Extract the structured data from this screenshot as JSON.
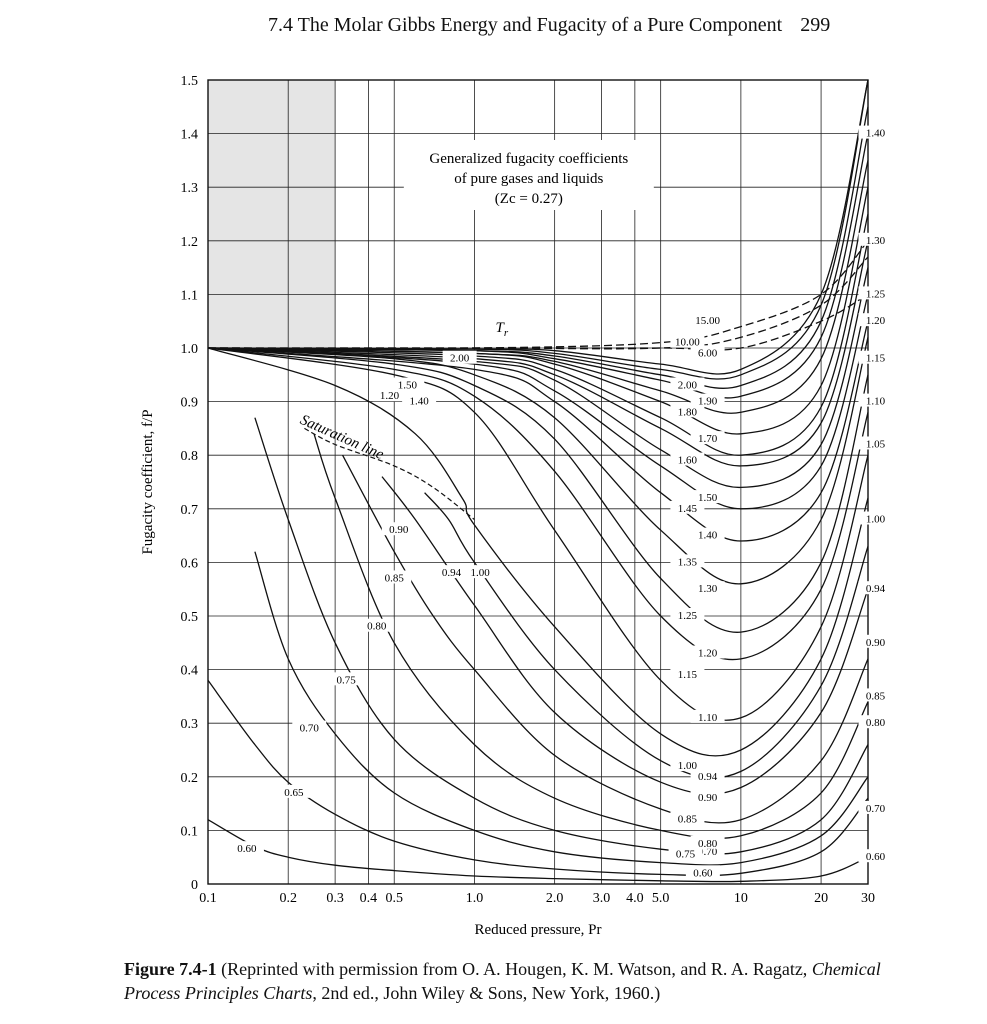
{
  "page": {
    "section_title": "7.4 The Molar Gibbs Energy and Fugacity of a Pure Component",
    "page_number": "299"
  },
  "caption": {
    "label": "Figure 7.4-1",
    "text_before": "(Reprinted with permission from O. A. Hougen, K. M. Watson, and R. A. Ragatz,",
    "book_title": "Chemical Process Principles Charts",
    "text_after": ", 2nd ed., John Wiley & Sons, New York, 1960.)"
  },
  "chart_data": {
    "type": "line",
    "title_lines": [
      "Generalized fugacity coefficients",
      "of pure gases and liquids",
      "(Zc = 0.27)"
    ],
    "xlabel": "Reduced pressure, Pr",
    "ylabel": "Fugacity coefficient, f/P",
    "x_scale": "log",
    "xlim": [
      0.1,
      30
    ],
    "ylim": [
      0,
      1.5
    ],
    "x_ticks": [
      0.1,
      0.2,
      0.3,
      0.4,
      0.5,
      1.0,
      2.0,
      3.0,
      4.0,
      5.0,
      10,
      20,
      30
    ],
    "x_tick_labels": [
      "0.1",
      "0.2",
      "0.3",
      "0.4",
      "0.5",
      "1.0",
      "2.0",
      "3.0",
      "4.0",
      "5.0",
      "10",
      "20",
      "30"
    ],
    "y_ticks": [
      0,
      0.1,
      0.2,
      0.3,
      0.4,
      0.5,
      0.6,
      0.7,
      0.8,
      0.9,
      1.0,
      1.1,
      1.2,
      1.3,
      1.4,
      1.5
    ],
    "y_tick_labels": [
      "0",
      "0.1",
      "0.2",
      "0.3",
      "0.4",
      "0.5",
      "0.6",
      "0.7",
      "0.8",
      "0.9",
      "1.0",
      "1.1",
      "1.2",
      "1.3",
      "1.4",
      "1.5"
    ],
    "grid": true,
    "parameter": "Tr",
    "parameter_label": "T",
    "parameter_subscript": "r",
    "saturation_label": "Saturation line",
    "series": [
      {
        "name": "0.60",
        "x": [
          0.1,
          0.15,
          0.2,
          0.3,
          0.5,
          1,
          2,
          5,
          10,
          20,
          30
        ],
        "y": [
          0.12,
          0.07,
          0.05,
          0.035,
          0.025,
          0.015,
          0.01,
          0.006,
          0.005,
          0.015,
          0.05
        ],
        "label_positions": [
          [
            0.14,
            0.065
          ],
          [
            7.2,
            0.02
          ],
          [
            32,
            0.05
          ]
        ]
      },
      {
        "name": "0.65",
        "x": [
          0.1,
          0.15,
          0.2,
          0.3,
          0.5,
          1,
          2,
          5,
          10,
          20,
          30
        ],
        "y": [
          0.38,
          0.26,
          0.19,
          0.13,
          0.08,
          0.045,
          0.028,
          0.018,
          0.02,
          0.06,
          0.16
        ],
        "label_positions": [
          [
            0.21,
            0.17
          ]
        ]
      },
      {
        "name": "0.70",
        "x": [
          0.15,
          0.2,
          0.3,
          0.5,
          1,
          2,
          5,
          10,
          20,
          30
        ],
        "y": [
          0.62,
          0.42,
          0.28,
          0.17,
          0.1,
          0.06,
          0.04,
          0.04,
          0.09,
          0.2
        ],
        "label_positions": [
          [
            0.24,
            0.29
          ],
          [
            7.5,
            0.06
          ],
          [
            32,
            0.14
          ]
        ]
      },
      {
        "name": "0.75",
        "x": [
          0.15,
          0.2,
          0.3,
          0.5,
          1,
          2,
          5,
          10,
          20,
          30
        ],
        "y": [
          0.87,
          0.68,
          0.45,
          0.27,
          0.16,
          0.1,
          0.065,
          0.06,
          0.12,
          0.26
        ],
        "label_positions": [
          [
            0.33,
            0.38
          ],
          [
            6.2,
            0.055
          ]
        ]
      },
      {
        "name": "0.80",
        "x": [
          0.25,
          0.3,
          0.5,
          1,
          2,
          5,
          10,
          20,
          30
        ],
        "y": [
          0.84,
          0.72,
          0.45,
          0.26,
          0.16,
          0.1,
          0.09,
          0.17,
          0.34
        ],
        "label_positions": [
          [
            0.43,
            0.48
          ],
          [
            7.5,
            0.075
          ],
          [
            32,
            0.3
          ]
        ]
      },
      {
        "name": "0.85",
        "x": [
          0.32,
          0.5,
          0.7,
          1,
          2,
          5,
          10,
          20,
          30
        ],
        "y": [
          0.8,
          0.62,
          0.5,
          0.4,
          0.24,
          0.14,
          0.12,
          0.23,
          0.42
        ],
        "label_positions": [
          [
            0.5,
            0.57
          ],
          [
            6.3,
            0.12
          ],
          [
            32,
            0.35
          ]
        ]
      },
      {
        "name": "0.90",
        "x": [
          0.45,
          0.6,
          1,
          2,
          5,
          10,
          20,
          30
        ],
        "y": [
          0.76,
          0.68,
          0.52,
          0.32,
          0.19,
          0.18,
          0.32,
          0.55
        ],
        "label_positions": [
          [
            0.52,
            0.66
          ],
          [
            7.5,
            0.16
          ],
          [
            32,
            0.45
          ]
        ]
      },
      {
        "name": "0.94",
        "x": [
          0.65,
          0.8,
          1,
          2,
          5,
          10,
          20,
          30
        ],
        "y": [
          0.73,
          0.68,
          0.6,
          0.4,
          0.23,
          0.21,
          0.37,
          0.63
        ],
        "label_positions": [
          [
            0.82,
            0.58
          ],
          [
            7.5,
            0.2
          ],
          [
            32,
            0.55
          ]
        ]
      },
      {
        "name": "1.00",
        "x": [
          0.1,
          0.3,
          0.6,
          0.9,
          1,
          2,
          5,
          10,
          20,
          30
        ],
        "y": [
          1.0,
          0.93,
          0.84,
          0.72,
          0.67,
          0.48,
          0.28,
          0.25,
          0.42,
          0.72
        ],
        "label_positions": [
          [
            1.05,
            0.58
          ],
          [
            6.3,
            0.22
          ],
          [
            32,
            0.68
          ]
        ]
      },
      {
        "name": "1.05",
        "x": [
          0.1,
          0.5,
          1,
          2,
          5,
          10,
          20,
          30
        ],
        "y": [
          1.0,
          0.95,
          0.88,
          0.66,
          0.38,
          0.31,
          0.48,
          0.8
        ],
        "label_positions": [
          [
            32,
            0.82
          ]
        ]
      },
      {
        "name": "1.10",
        "x": [
          0.1,
          0.5,
          1,
          2,
          5,
          10,
          20,
          30
        ],
        "y": [
          1.0,
          0.96,
          0.91,
          0.77,
          0.5,
          0.42,
          0.55,
          0.88
        ],
        "label_positions": [
          [
            7.5,
            0.31
          ],
          [
            32,
            0.9
          ]
        ]
      },
      {
        "name": "1.15",
        "x": [
          0.1,
          0.5,
          1,
          2,
          5,
          10,
          20,
          30
        ],
        "y": [
          1.0,
          0.97,
          0.93,
          0.83,
          0.57,
          0.47,
          0.6,
          0.95
        ],
        "label_positions": [
          [
            6.3,
            0.39
          ],
          [
            32,
            0.98
          ]
        ]
      },
      {
        "name": "1.20",
        "x": [
          0.1,
          0.5,
          1,
          2,
          5,
          10,
          20,
          30
        ],
        "y": [
          1.0,
          0.98,
          0.95,
          0.87,
          0.66,
          0.56,
          0.68,
          1.02
        ],
        "label_positions": [
          [
            0.48,
            0.91
          ],
          [
            7.5,
            0.43
          ],
          [
            32,
            1.05
          ]
        ]
      },
      {
        "name": "1.25",
        "x": [
          0.1,
          1,
          2,
          5,
          10,
          20,
          30
        ],
        "y": [
          1.0,
          0.96,
          0.9,
          0.73,
          0.64,
          0.73,
          1.05
        ],
        "label_positions": [
          [
            6.3,
            0.5
          ],
          [
            32,
            1.1
          ]
        ]
      },
      {
        "name": "1.30",
        "x": [
          0.1,
          1,
          2,
          5,
          10,
          20,
          30
        ],
        "y": [
          1.0,
          0.97,
          0.92,
          0.78,
          0.7,
          0.78,
          1.1
        ],
        "label_positions": [
          [
            7.5,
            0.55
          ],
          [
            32,
            1.2
          ]
        ]
      },
      {
        "name": "1.35",
        "x": [
          0.1,
          1,
          2,
          5,
          10,
          20,
          30
        ],
        "y": [
          1.0,
          0.975,
          0.94,
          0.81,
          0.74,
          0.82,
          1.15
        ],
        "label_positions": [
          [
            6.3,
            0.6
          ]
        ]
      },
      {
        "name": "1.40",
        "x": [
          0.1,
          1,
          2,
          5,
          10,
          20,
          30
        ],
        "y": [
          1.0,
          0.98,
          0.95,
          0.85,
          0.78,
          0.86,
          1.2
        ],
        "label_positions": [
          [
            0.62,
            0.9
          ],
          [
            7.5,
            0.65
          ],
          [
            32,
            1.4
          ]
        ]
      },
      {
        "name": "1.45",
        "x": [
          0.1,
          1,
          2,
          5,
          10,
          20,
          30
        ],
        "y": [
          1.0,
          0.985,
          0.96,
          0.87,
          0.8,
          0.89,
          1.25
        ],
        "label_positions": [
          [
            6.3,
            0.7
          ]
        ]
      },
      {
        "name": "1.50",
        "x": [
          0.1,
          1,
          2,
          5,
          10,
          20,
          30
        ],
        "y": [
          1.0,
          0.99,
          0.97,
          0.9,
          0.84,
          0.93,
          1.3
        ],
        "label_positions": [
          [
            0.56,
            0.93
          ],
          [
            7.5,
            0.72
          ]
        ]
      },
      {
        "name": "1.60",
        "x": [
          0.1,
          1,
          2,
          5,
          10,
          20,
          30
        ],
        "y": [
          1.0,
          0.99,
          0.975,
          0.92,
          0.88,
          0.98,
          1.35
        ],
        "label_positions": [
          [
            6.3,
            0.79
          ]
        ]
      },
      {
        "name": "1.70",
        "x": [
          0.1,
          1,
          2,
          5,
          10,
          20,
          30
        ],
        "y": [
          1.0,
          0.995,
          0.98,
          0.94,
          0.91,
          1.02,
          1.4
        ],
        "label_positions": [
          [
            7.5,
            0.83
          ]
        ]
      },
      {
        "name": "1.80",
        "x": [
          0.1,
          1,
          2,
          5,
          10,
          20,
          30
        ],
        "y": [
          1.0,
          0.995,
          0.985,
          0.95,
          0.93,
          1.05,
          1.45
        ],
        "label_positions": [
          [
            6.3,
            0.88
          ]
        ]
      },
      {
        "name": "1.90",
        "x": [
          0.1,
          1,
          2,
          5,
          10,
          20,
          30
        ],
        "y": [
          1.0,
          0.998,
          0.99,
          0.96,
          0.95,
          1.08,
          1.5
        ],
        "label_positions": [
          [
            7.5,
            0.9
          ]
        ]
      },
      {
        "name": "2.00",
        "x": [
          0.1,
          1,
          2,
          5,
          10,
          20,
          30
        ],
        "y": [
          1.0,
          0.998,
          0.995,
          0.97,
          0.96,
          1.1,
          1.55
        ],
        "label_positions": [
          [
            0.88,
            0.98
          ],
          [
            6.3,
            0.93
          ]
        ]
      },
      {
        "name": "6.00",
        "x": [
          0.1,
          1,
          5,
          10,
          20,
          30
        ],
        "y": [
          1.0,
          1.0,
          1.0,
          1.0,
          1.05,
          1.1
        ],
        "label_positions": [
          [
            7.5,
            0.99
          ]
        ],
        "dashed": true
      },
      {
        "name": "10.00",
        "x": [
          0.1,
          1,
          5,
          10,
          20,
          30
        ],
        "y": [
          1.0,
          1.0,
          1.0,
          1.02,
          1.08,
          1.17
        ],
        "label_positions": [
          [
            6.3,
            1.01
          ]
        ],
        "dashed": true
      },
      {
        "name": "15.00",
        "x": [
          0.1,
          1,
          5,
          10,
          20,
          30
        ],
        "y": [
          1.0,
          1.0,
          1.01,
          1.04,
          1.1,
          1.2
        ],
        "label_positions": [
          [
            7.5,
            1.05
          ]
        ],
        "dashed": true
      }
    ],
    "saturation_line": {
      "x": [
        0.23,
        0.3,
        0.5,
        0.7,
        1.0
      ],
      "y": [
        0.85,
        0.82,
        0.78,
        0.74,
        0.68
      ]
    }
  }
}
